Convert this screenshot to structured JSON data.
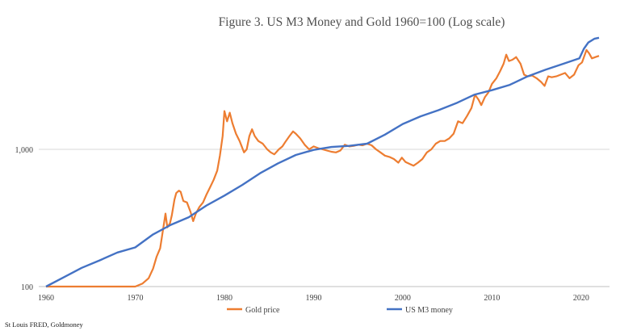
{
  "chart_data": {
    "type": "line",
    "title": "Figure 3. US M3 Money and Gold 1960=100 (Log scale)",
    "xlabel": "",
    "ylabel": "",
    "y_scale": "log",
    "xlim": [
      1960,
      2022
    ],
    "ylim": [
      100,
      6500
    ],
    "x_ticks": [
      1960,
      1970,
      1980,
      1990,
      2000,
      2010,
      2020
    ],
    "y_ticks": [
      {
        "value": 100,
        "label": "100"
      },
      {
        "value": 1000,
        "label": "1,000"
      }
    ],
    "grid": true,
    "legend_position": "bottom",
    "series": [
      {
        "name": "Gold price",
        "color": "#ED7D31",
        "points": [
          [
            1960,
            100
          ],
          [
            1965,
            100
          ],
          [
            1970,
            100
          ],
          [
            1970.8,
            105
          ],
          [
            1971.5,
            115
          ],
          [
            1972,
            135
          ],
          [
            1972.4,
            165
          ],
          [
            1972.8,
            190
          ],
          [
            1973.2,
            280
          ],
          [
            1973.4,
            340
          ],
          [
            1973.6,
            270
          ],
          [
            1973.9,
            290
          ],
          [
            1974.1,
            330
          ],
          [
            1974.4,
            430
          ],
          [
            1974.6,
            480
          ],
          [
            1974.9,
            500
          ],
          [
            1975.1,
            490
          ],
          [
            1975.4,
            420
          ],
          [
            1975.8,
            410
          ],
          [
            1976.2,
            350
          ],
          [
            1976.5,
            300
          ],
          [
            1976.8,
            340
          ],
          [
            1977.2,
            380
          ],
          [
            1977.6,
            410
          ],
          [
            1978,
            470
          ],
          [
            1978.4,
            530
          ],
          [
            1978.8,
            600
          ],
          [
            1979.2,
            700
          ],
          [
            1979.5,
            900
          ],
          [
            1979.8,
            1250
          ],
          [
            1980.0,
            1900
          ],
          [
            1980.3,
            1600
          ],
          [
            1980.6,
            1850
          ],
          [
            1980.9,
            1550
          ],
          [
            1981.3,
            1300
          ],
          [
            1981.7,
            1150
          ],
          [
            1982.2,
            950
          ],
          [
            1982.5,
            1000
          ],
          [
            1982.8,
            1250
          ],
          [
            1983.1,
            1400
          ],
          [
            1983.4,
            1250
          ],
          [
            1983.8,
            1150
          ],
          [
            1984.3,
            1100
          ],
          [
            1984.8,
            1000
          ],
          [
            1985.2,
            950
          ],
          [
            1985.6,
            920
          ],
          [
            1986.1,
            1000
          ],
          [
            1986.5,
            1050
          ],
          [
            1986.9,
            1150
          ],
          [
            1987.3,
            1250
          ],
          [
            1987.7,
            1350
          ],
          [
            1988.0,
            1300
          ],
          [
            1988.5,
            1200
          ],
          [
            1989.0,
            1080
          ],
          [
            1989.5,
            1000
          ],
          [
            1990.0,
            1050
          ],
          [
            1990.5,
            1020
          ],
          [
            1991.0,
            1000
          ],
          [
            1991.5,
            980
          ],
          [
            1992.0,
            960
          ],
          [
            1992.5,
            950
          ],
          [
            1993.0,
            980
          ],
          [
            1993.5,
            1080
          ],
          [
            1994.0,
            1050
          ],
          [
            1994.5,
            1060
          ],
          [
            1995.0,
            1080
          ],
          [
            1995.5,
            1070
          ],
          [
            1996.0,
            1100
          ],
          [
            1996.5,
            1070
          ],
          [
            1997.0,
            1000
          ],
          [
            1997.5,
            950
          ],
          [
            1998.0,
            900
          ],
          [
            1998.5,
            880
          ],
          [
            1999.0,
            850
          ],
          [
            1999.5,
            800
          ],
          [
            1999.9,
            870
          ],
          [
            2000.3,
            810
          ],
          [
            2000.8,
            780
          ],
          [
            2001.2,
            760
          ],
          [
            2001.7,
            800
          ],
          [
            2002.2,
            850
          ],
          [
            2002.7,
            950
          ],
          [
            2003.2,
            1000
          ],
          [
            2003.7,
            1100
          ],
          [
            2004.2,
            1150
          ],
          [
            2004.7,
            1150
          ],
          [
            2005.2,
            1200
          ],
          [
            2005.7,
            1300
          ],
          [
            2006.2,
            1600
          ],
          [
            2006.7,
            1550
          ],
          [
            2007.2,
            1750
          ],
          [
            2007.7,
            2000
          ],
          [
            2008.1,
            2500
          ],
          [
            2008.5,
            2300
          ],
          [
            2008.8,
            2100
          ],
          [
            2009.2,
            2400
          ],
          [
            2009.6,
            2600
          ],
          [
            2010.0,
            3000
          ],
          [
            2010.5,
            3300
          ],
          [
            2010.9,
            3700
          ],
          [
            2011.3,
            4200
          ],
          [
            2011.6,
            4900
          ],
          [
            2011.9,
            4400
          ],
          [
            2012.3,
            4500
          ],
          [
            2012.7,
            4700
          ],
          [
            2013.2,
            4200
          ],
          [
            2013.6,
            3500
          ],
          [
            2014.0,
            3400
          ],
          [
            2014.5,
            3450
          ],
          [
            2015.0,
            3300
          ],
          [
            2015.5,
            3100
          ],
          [
            2015.9,
            2900
          ],
          [
            2016.3,
            3400
          ],
          [
            2016.7,
            3350
          ],
          [
            2017.2,
            3400
          ],
          [
            2017.7,
            3500
          ],
          [
            2018.2,
            3600
          ],
          [
            2018.7,
            3300
          ],
          [
            2019.2,
            3500
          ],
          [
            2019.7,
            4100
          ],
          [
            2020.1,
            4300
          ],
          [
            2020.6,
            5300
          ],
          [
            2020.9,
            5000
          ],
          [
            2021.2,
            4600
          ],
          [
            2021.6,
            4700
          ],
          [
            2022.0,
            4800
          ]
        ]
      },
      {
        "name": "US M3 money",
        "color": "#4472C4",
        "points": [
          [
            1960,
            100
          ],
          [
            1962,
            117
          ],
          [
            1964,
            137
          ],
          [
            1966,
            155
          ],
          [
            1968,
            177
          ],
          [
            1970,
            193
          ],
          [
            1972,
            240
          ],
          [
            1974,
            282
          ],
          [
            1976,
            320
          ],
          [
            1978,
            390
          ],
          [
            1980,
            460
          ],
          [
            1982,
            550
          ],
          [
            1984,
            670
          ],
          [
            1986,
            790
          ],
          [
            1988,
            910
          ],
          [
            1990,
            990
          ],
          [
            1992,
            1040
          ],
          [
            1994,
            1060
          ],
          [
            1996,
            1100
          ],
          [
            1998,
            1280
          ],
          [
            2000,
            1530
          ],
          [
            2002,
            1740
          ],
          [
            2004,
            1930
          ],
          [
            2006,
            2170
          ],
          [
            2008,
            2500
          ],
          [
            2010,
            2700
          ],
          [
            2012,
            2950
          ],
          [
            2014,
            3400
          ],
          [
            2016,
            3800
          ],
          [
            2018,
            4200
          ],
          [
            2019.8,
            4600
          ],
          [
            2020.3,
            5400
          ],
          [
            2020.8,
            6000
          ],
          [
            2021.5,
            6400
          ],
          [
            2022,
            6500
          ]
        ]
      }
    ],
    "source": "St Louis FRED, Goldmoney"
  }
}
